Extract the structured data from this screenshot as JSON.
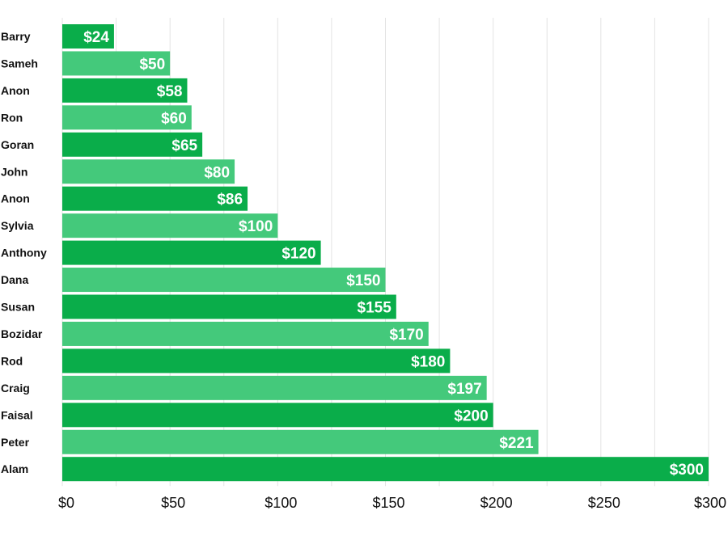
{
  "chart_data": {
    "type": "bar",
    "orientation": "horizontal",
    "title": "",
    "xlabel": "",
    "ylabel": "",
    "categories": [
      "Barry",
      "Sameh",
      "Anon",
      "Ron",
      "Goran",
      "John",
      "Anon",
      "Sylvia",
      "Anthony",
      "Dana",
      "Susan",
      "Bozidar",
      "Rod",
      "Craig",
      "Faisal",
      "Peter",
      "Alam"
    ],
    "values": [
      24,
      50,
      58,
      60,
      65,
      80,
      86,
      100,
      120,
      150,
      155,
      170,
      180,
      197,
      200,
      221,
      300
    ],
    "value_labels": [
      "$24",
      "$50",
      "$58",
      "$60",
      "$65",
      "$80",
      "$86",
      "$100",
      "$120",
      "$150",
      "$155",
      "$170",
      "$180",
      "$197",
      "$200",
      "$221",
      "$300"
    ],
    "xlim": [
      0,
      300
    ],
    "x_ticks": [
      0,
      50,
      100,
      150,
      200,
      250,
      300
    ],
    "x_tick_labels": [
      "$0",
      "$50",
      "$100",
      "$150",
      "$200",
      "$250",
      "$300"
    ],
    "grid": true,
    "legend": false,
    "colors": {
      "dark": "#0aad4a",
      "light": "#44c97b"
    }
  }
}
